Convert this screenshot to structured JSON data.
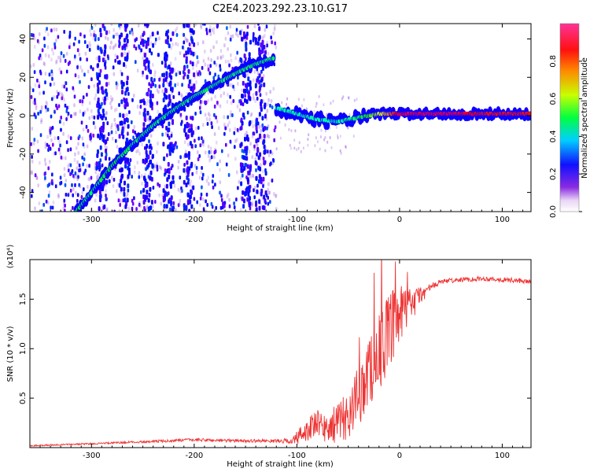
{
  "title": "C2E4.2023.292.23.10.G17",
  "chart_data": [
    {
      "type": "heatmap",
      "xlabel": "Height of straight line (km)",
      "ylabel": "Frequency (Hz)",
      "xlim": [
        -360,
        128
      ],
      "ylim": [
        -50,
        48
      ],
      "xticks": [
        -300,
        -200,
        -100,
        0,
        100
      ],
      "yticks": [
        -40,
        -20,
        0,
        20,
        40
      ],
      "colorbar": {
        "label": "Normalized spectral amplitude",
        "range": [
          0,
          1
        ],
        "ticks": [
          "0.0",
          "0.2",
          "0.4",
          "0.6",
          "0.8"
        ],
        "colormap": "hsv-rainbow (white-violet-blue-cyan-green-yellow-red-magenta)"
      },
      "ridge": {
        "description": "dominant frequency trace",
        "x": [
          -315,
          -300,
          -280,
          -260,
          -240,
          -220,
          -200,
          -180,
          -160,
          -140,
          -122,
          -120,
          -100,
          -80,
          -60,
          -40,
          -20,
          0,
          20,
          50,
          80,
          100,
          128
        ],
        "y": [
          -50,
          -40,
          -26,
          -15,
          -5,
          3,
          10,
          16,
          22,
          27,
          30,
          4,
          1,
          -2,
          -3,
          -1,
          1,
          1,
          1,
          1,
          1,
          1,
          1
        ],
        "amplitude": [
          0.55,
          0.5,
          0.55,
          0.5,
          0.5,
          0.5,
          0.5,
          0.5,
          0.5,
          0.5,
          0.5,
          0.45,
          0.45,
          0.45,
          0.45,
          0.5,
          0.7,
          0.95,
          0.95,
          0.95,
          0.9,
          0.9,
          0.9
        ]
      }
    },
    {
      "type": "line",
      "xlabel": "Height of straight line (km)",
      "ylabel": "SNR (10 * v/v)",
      "y_multiplier": "(x10⁴)",
      "xlim": [
        -360,
        128
      ],
      "ylim": [
        0,
        1.9
      ],
      "xticks": [
        -300,
        -200,
        -100,
        0,
        100
      ],
      "yticks": [
        "0.5",
        "1.0",
        "1.5"
      ],
      "color": "#ee3333",
      "envelope": {
        "x": [
          -360,
          -300,
          -250,
          -200,
          -150,
          -120,
          -105,
          -100,
          -90,
          -80,
          -70,
          -60,
          -50,
          -40,
          -30,
          -20,
          -10,
          0,
          10,
          20,
          30,
          40,
          60,
          80,
          100,
          128
        ],
        "y": [
          0.02,
          0.04,
          0.06,
          0.08,
          0.07,
          0.07,
          0.07,
          0.1,
          0.2,
          0.25,
          0.2,
          0.28,
          0.35,
          0.55,
          0.8,
          1.0,
          1.2,
          1.35,
          1.45,
          1.55,
          1.62,
          1.68,
          1.7,
          1.71,
          1.7,
          1.68
        ],
        "noise": [
          0.01,
          0.01,
          0.015,
          0.02,
          0.02,
          0.02,
          0.04,
          0.1,
          0.15,
          0.18,
          0.2,
          0.25,
          0.3,
          0.4,
          0.45,
          0.5,
          0.5,
          0.4,
          0.25,
          0.12,
          0.06,
          0.03,
          0.03,
          0.03,
          0.03,
          0.03
        ]
      }
    }
  ]
}
